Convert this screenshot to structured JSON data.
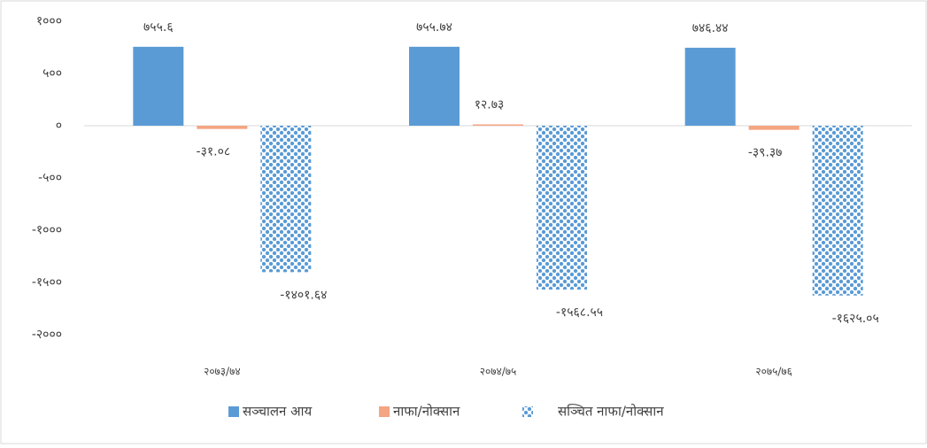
{
  "chart_data": {
    "type": "bar",
    "categories": [
      "२०७३/७४",
      "२०७४/७५",
      "२०७५/७६"
    ],
    "series": [
      {
        "name": "सञ्चालन आय",
        "color": "#5b9bd5",
        "values": [
          755.6,
          755.74,
          746.44
        ],
        "value_labels": [
          "७५५.६",
          "७५५.७४",
          "७४६.४४"
        ]
      },
      {
        "name": "नाफा/नोक्सान",
        "color": "#f4a582",
        "values": [
          -31.08,
          12.73,
          -39.37
        ],
        "value_labels": [
          "-३१.०८",
          "१२.७३",
          "-३९.३७"
        ]
      },
      {
        "name": "सञ्चित नाफा/नोक्सान",
        "color": "#5b9bd5",
        "fill_pattern": "dots",
        "values": [
          -1401.64,
          -1568.55,
          -1625.05
        ],
        "value_labels": [
          "-१४०१.६४",
          "-१५६८.५५",
          "-१६२५.०५"
        ]
      }
    ],
    "ylim": [
      -2000,
      1000
    ],
    "yticks": [
      {
        "value": 1000,
        "label": "१०००"
      },
      {
        "value": 500,
        "label": "५००"
      },
      {
        "value": 0,
        "label": "०"
      },
      {
        "value": -500,
        "label": "-५००"
      },
      {
        "value": -1000,
        "label": "-१०००"
      },
      {
        "value": -1500,
        "label": "-१५००"
      },
      {
        "value": -2000,
        "label": "-२०००"
      }
    ],
    "grid": false,
    "legend": "bottom"
  }
}
